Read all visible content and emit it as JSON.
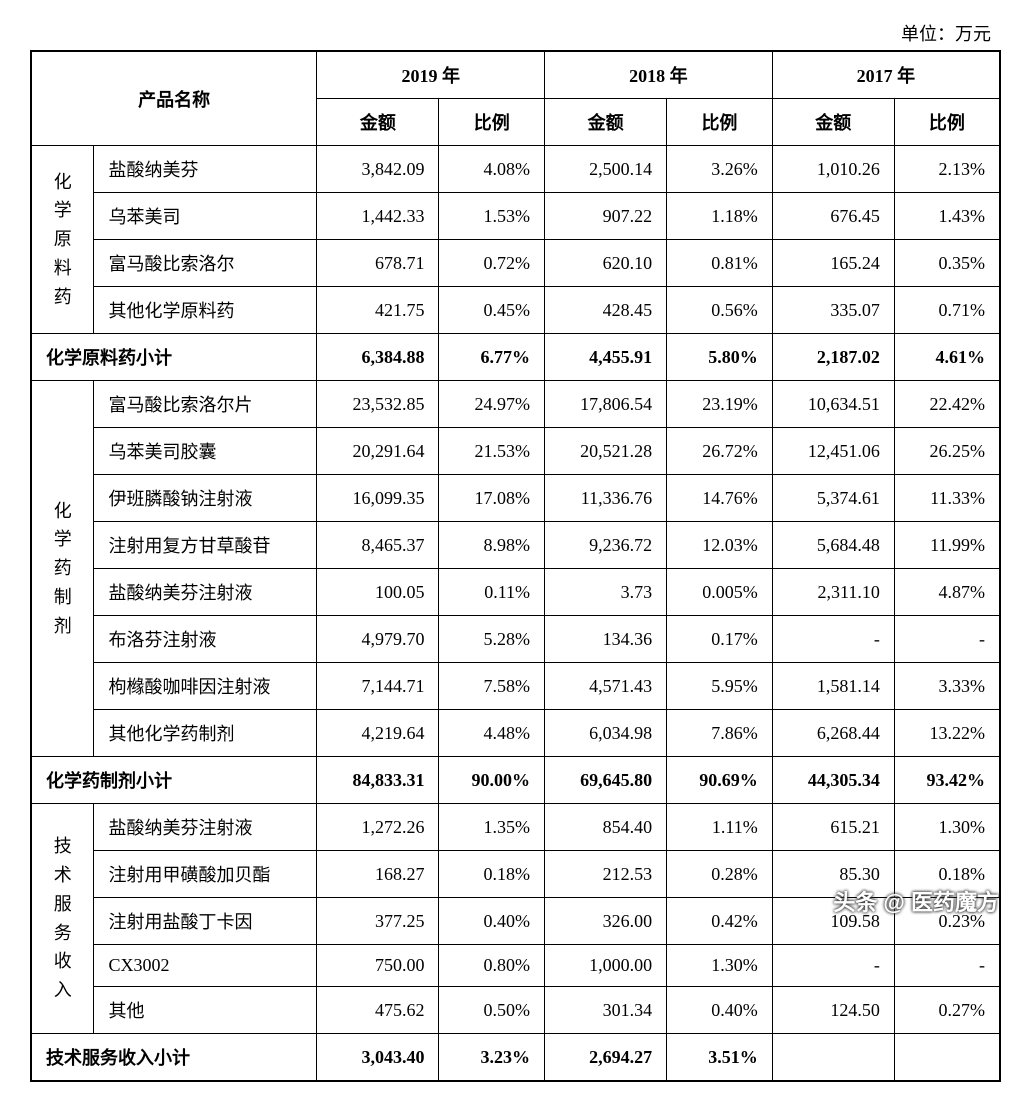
{
  "unit_label": "单位：万元",
  "header": {
    "product_name": "产品名称",
    "years": [
      "2019 年",
      "2018 年",
      "2017 年"
    ],
    "amount": "金额",
    "ratio": "比例"
  },
  "sections": [
    {
      "category": "化学原料药",
      "subtotal_label": "化学原料药小计",
      "rows": [
        {
          "name": "盐酸纳美芬",
          "y2019_amt": "3,842.09",
          "y2019_pct": "4.08%",
          "y2018_amt": "2,500.14",
          "y2018_pct": "3.26%",
          "y2017_amt": "1,010.26",
          "y2017_pct": "2.13%"
        },
        {
          "name": "乌苯美司",
          "y2019_amt": "1,442.33",
          "y2019_pct": "1.53%",
          "y2018_amt": "907.22",
          "y2018_pct": "1.18%",
          "y2017_amt": "676.45",
          "y2017_pct": "1.43%"
        },
        {
          "name": "富马酸比索洛尔",
          "y2019_amt": "678.71",
          "y2019_pct": "0.72%",
          "y2018_amt": "620.10",
          "y2018_pct": "0.81%",
          "y2017_amt": "165.24",
          "y2017_pct": "0.35%"
        },
        {
          "name": "其他化学原料药",
          "y2019_amt": "421.75",
          "y2019_pct": "0.45%",
          "y2018_amt": "428.45",
          "y2018_pct": "0.56%",
          "y2017_amt": "335.07",
          "y2017_pct": "0.71%"
        }
      ],
      "subtotal": {
        "y2019_amt": "6,384.88",
        "y2019_pct": "6.77%",
        "y2018_amt": "4,455.91",
        "y2018_pct": "5.80%",
        "y2017_amt": "2,187.02",
        "y2017_pct": "4.61%"
      }
    },
    {
      "category": "化学药制剂",
      "subtotal_label": "化学药制剂小计",
      "rows": [
        {
          "name": "富马酸比索洛尔片",
          "y2019_amt": "23,532.85",
          "y2019_pct": "24.97%",
          "y2018_amt": "17,806.54",
          "y2018_pct": "23.19%",
          "y2017_amt": "10,634.51",
          "y2017_pct": "22.42%"
        },
        {
          "name": "乌苯美司胶囊",
          "y2019_amt": "20,291.64",
          "y2019_pct": "21.53%",
          "y2018_amt": "20,521.28",
          "y2018_pct": "26.72%",
          "y2017_amt": "12,451.06",
          "y2017_pct": "26.25%"
        },
        {
          "name": "伊班膦酸钠注射液",
          "y2019_amt": "16,099.35",
          "y2019_pct": "17.08%",
          "y2018_amt": "11,336.76",
          "y2018_pct": "14.76%",
          "y2017_amt": "5,374.61",
          "y2017_pct": "11.33%"
        },
        {
          "name": "注射用复方甘草酸苷",
          "y2019_amt": "8,465.37",
          "y2019_pct": "8.98%",
          "y2018_amt": "9,236.72",
          "y2018_pct": "12.03%",
          "y2017_amt": "5,684.48",
          "y2017_pct": "11.99%"
        },
        {
          "name": "盐酸纳美芬注射液",
          "y2019_amt": "100.05",
          "y2019_pct": "0.11%",
          "y2018_amt": "3.73",
          "y2018_pct": "0.005%",
          "y2017_amt": "2,311.10",
          "y2017_pct": "4.87%"
        },
        {
          "name": "布洛芬注射液",
          "y2019_amt": "4,979.70",
          "y2019_pct": "5.28%",
          "y2018_amt": "134.36",
          "y2018_pct": "0.17%",
          "y2017_amt": "-",
          "y2017_pct": "-"
        },
        {
          "name": "枸橼酸咖啡因注射液",
          "y2019_amt": "7,144.71",
          "y2019_pct": "7.58%",
          "y2018_amt": "4,571.43",
          "y2018_pct": "5.95%",
          "y2017_amt": "1,581.14",
          "y2017_pct": "3.33%"
        },
        {
          "name": "其他化学药制剂",
          "y2019_amt": "4,219.64",
          "y2019_pct": "4.48%",
          "y2018_amt": "6,034.98",
          "y2018_pct": "7.86%",
          "y2017_amt": "6,268.44",
          "y2017_pct": "13.22%"
        }
      ],
      "subtotal": {
        "y2019_amt": "84,833.31",
        "y2019_pct": "90.00%",
        "y2018_amt": "69,645.80",
        "y2018_pct": "90.69%",
        "y2017_amt": "44,305.34",
        "y2017_pct": "93.42%"
      }
    },
    {
      "category": "技术服务收入",
      "subtotal_label": "技术服务收入小计",
      "rows": [
        {
          "name": "盐酸纳美芬注射液",
          "y2019_amt": "1,272.26",
          "y2019_pct": "1.35%",
          "y2018_amt": "854.40",
          "y2018_pct": "1.11%",
          "y2017_amt": "615.21",
          "y2017_pct": "1.30%"
        },
        {
          "name": "注射用甲磺酸加贝酯",
          "y2019_amt": "168.27",
          "y2019_pct": "0.18%",
          "y2018_amt": "212.53",
          "y2018_pct": "0.28%",
          "y2017_amt": "85.30",
          "y2017_pct": "0.18%"
        },
        {
          "name": "注射用盐酸丁卡因",
          "y2019_amt": "377.25",
          "y2019_pct": "0.40%",
          "y2018_amt": "326.00",
          "y2018_pct": "0.42%",
          "y2017_amt": "109.58",
          "y2017_pct": "0.23%"
        },
        {
          "name": "CX3002",
          "y2019_amt": "750.00",
          "y2019_pct": "0.80%",
          "y2018_amt": "1,000.00",
          "y2018_pct": "1.30%",
          "y2017_amt": "-",
          "y2017_pct": "-"
        },
        {
          "name": "其他",
          "y2019_amt": "475.62",
          "y2019_pct": "0.50%",
          "y2018_amt": "301.34",
          "y2018_pct": "0.40%",
          "y2017_amt": "124.50",
          "y2017_pct": "0.27%"
        }
      ],
      "subtotal": {
        "y2019_amt": "3,043.40",
        "y2019_pct": "3.23%",
        "y2018_amt": "2,694.27",
        "y2018_pct": "3.51%",
        "y2017_amt": "",
        "y2017_pct": ""
      }
    }
  ],
  "watermark": "头条 @ 医药魔方",
  "style": {
    "font_family": "SimSun",
    "font_size_pt": 14,
    "border_color": "#000000",
    "background_color": "#ffffff",
    "text_color": "#000000"
  }
}
